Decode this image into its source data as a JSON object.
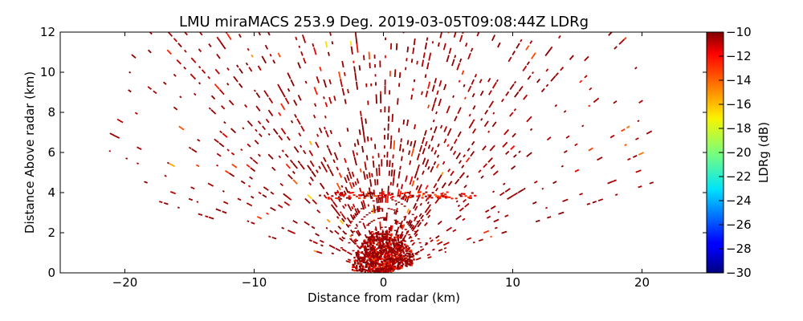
{
  "chart_data": {
    "type": "scatter",
    "title": "LMU miraMACS 253.9 Deg. 2019-03-05T09:08:44Z  LDRg",
    "xlabel": "Distance from radar (km)",
    "ylabel": "Distance Above radar  (km)",
    "xlim": [
      -25,
      25
    ],
    "ylim": [
      0,
      12
    ],
    "x_ticks": [
      -20,
      -10,
      0,
      10,
      20
    ],
    "x_tick_labels": [
      "−20",
      "−10",
      "0",
      "10",
      "20"
    ],
    "y_ticks": [
      0,
      2,
      4,
      6,
      8,
      10,
      12
    ],
    "y_tick_labels": [
      "0",
      "2",
      "4",
      "6",
      "8",
      "10",
      "12"
    ],
    "grid": false,
    "scan": {
      "azimuth_deg": 253.9,
      "elevation_range_deg": [
        10,
        170
      ],
      "max_range_km": 22,
      "dominant_ldr_db": -11,
      "enhanced_layer_height_km": 3.9,
      "enhanced_layer_ldr_db": -14,
      "near_field_radius_km": 2.5
    },
    "colorbar": {
      "label": "LDRg (dB)",
      "colormap": "jet",
      "vmin": -30,
      "vmax": -10,
      "ticks": [
        -10,
        -12,
        -14,
        -16,
        -18,
        -20,
        -22,
        -24,
        -26,
        -28,
        -30
      ],
      "tick_labels": [
        "−10",
        "−12",
        "−14",
        "−16",
        "−18",
        "−20",
        "−22",
        "−24",
        "−26",
        "−28",
        "−30"
      ]
    }
  }
}
